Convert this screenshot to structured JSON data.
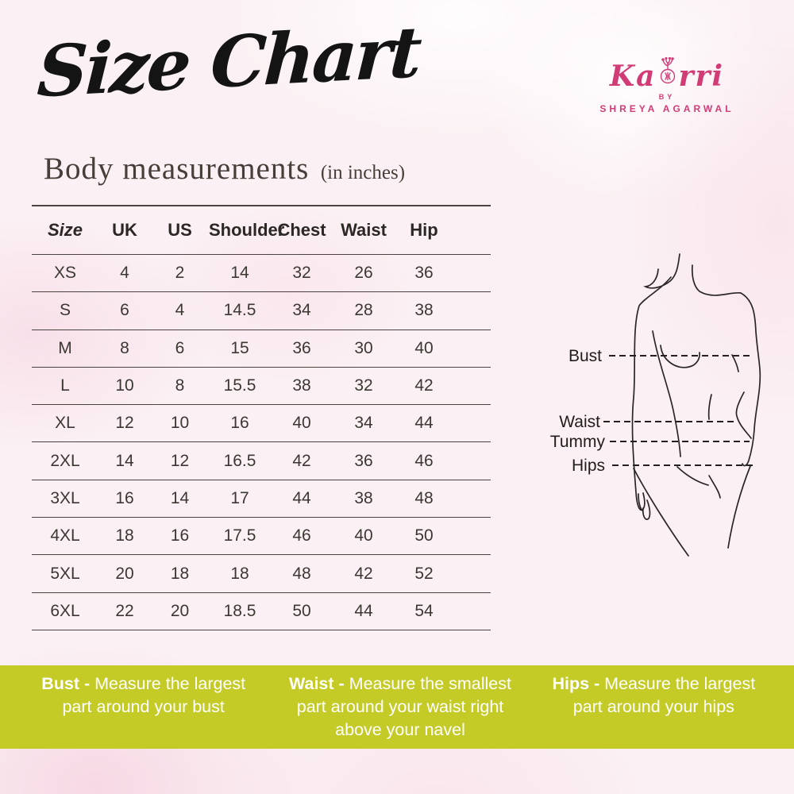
{
  "page": {
    "title": "Size Chart",
    "subtitle": "Body measurements",
    "subtitle_note": "(in inches)"
  },
  "brand": {
    "name": "Kaorri",
    "name_part1": "Ka",
    "name_part2": "rri",
    "by_label": "BY",
    "owner": "SHREYA AGARWAL",
    "brand_color": "#d23c76"
  },
  "size_table": {
    "columns": [
      "Size",
      "UK",
      "US",
      "Shoulder",
      "Chest",
      "Waist",
      "Hip"
    ],
    "rows": [
      [
        "XS",
        "4",
        "2",
        "14",
        "32",
        "26",
        "36"
      ],
      [
        "S",
        "6",
        "4",
        "14.5",
        "34",
        "28",
        "38"
      ],
      [
        "M",
        "8",
        "6",
        "15",
        "36",
        "30",
        "40"
      ],
      [
        "L",
        "10",
        "8",
        "15.5",
        "38",
        "32",
        "42"
      ],
      [
        "XL",
        "12",
        "10",
        "16",
        "40",
        "34",
        "44"
      ],
      [
        "2XL",
        "14",
        "12",
        "16.5",
        "42",
        "36",
        "46"
      ],
      [
        "3XL",
        "16",
        "14",
        "17",
        "44",
        "38",
        "48"
      ],
      [
        "4XL",
        "18",
        "16",
        "17.5",
        "46",
        "40",
        "50"
      ],
      [
        "5XL",
        "20",
        "18",
        "18",
        "48",
        "42",
        "52"
      ],
      [
        "6XL",
        "22",
        "20",
        "18.5",
        "50",
        "44",
        "54"
      ]
    ]
  },
  "figure": {
    "labels": [
      "Bust",
      "Waist",
      "Tummy",
      "Hips"
    ]
  },
  "measure_guide": {
    "background_color": "#c4cb27",
    "items": [
      {
        "label": "Bust - ",
        "text": "Measure the largest\npart around your bust"
      },
      {
        "label": "Waist - ",
        "text": "Measure the smallest\npart around your waist right\nabove your navel"
      },
      {
        "label": "Hips - ",
        "text": "Measure the largest\npart around your hips"
      }
    ]
  }
}
